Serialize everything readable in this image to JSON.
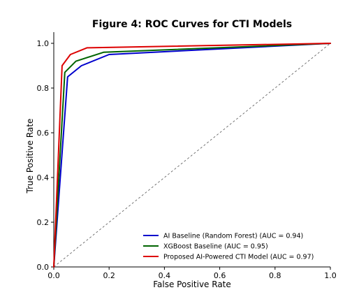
{
  "chart_data": {
    "type": "line",
    "title": "Figure 4: ROC Curves for CTI Models",
    "xlabel": "False Positive Rate",
    "ylabel": "True Positive Rate",
    "xlim": [
      0,
      1
    ],
    "ylim": [
      0,
      1.05
    ],
    "xticks": [
      0.0,
      0.2,
      0.4,
      0.6,
      0.8,
      1.0
    ],
    "yticks": [
      0.0,
      0.2,
      0.4,
      0.6,
      0.8,
      1.0
    ],
    "xtick_labels": [
      "0.0",
      "0.2",
      "0.4",
      "0.6",
      "0.8",
      "1.0"
    ],
    "ytick_labels": [
      "0.0",
      "0.2",
      "0.4",
      "0.6",
      "0.8",
      "1.0"
    ],
    "grid": false,
    "legend_position": "lower-right",
    "series": [
      {
        "name": "AI Baseline (Random Forest) (AUC = 0.94)",
        "color": "#0000cc",
        "x": [
          0,
          0.05,
          0.1,
          0.2,
          1.0
        ],
        "y": [
          0,
          0.85,
          0.9,
          0.95,
          1.0
        ]
      },
      {
        "name": "XGBoost Baseline (AUC = 0.95)",
        "color": "#006400",
        "x": [
          0,
          0.04,
          0.08,
          0.18,
          1.0
        ],
        "y": [
          0,
          0.87,
          0.92,
          0.96,
          1.0
        ]
      },
      {
        "name": "Proposed AI-Powered CTI Model (AUC = 0.97)",
        "color": "#dd0000",
        "x": [
          0,
          0.03,
          0.06,
          0.12,
          1.0
        ],
        "y": [
          0,
          0.9,
          0.95,
          0.98,
          1.0
        ]
      }
    ],
    "reference_line": {
      "x": [
        0,
        1
      ],
      "y": [
        0,
        1
      ],
      "color": "#555555",
      "style": "dashed"
    }
  }
}
